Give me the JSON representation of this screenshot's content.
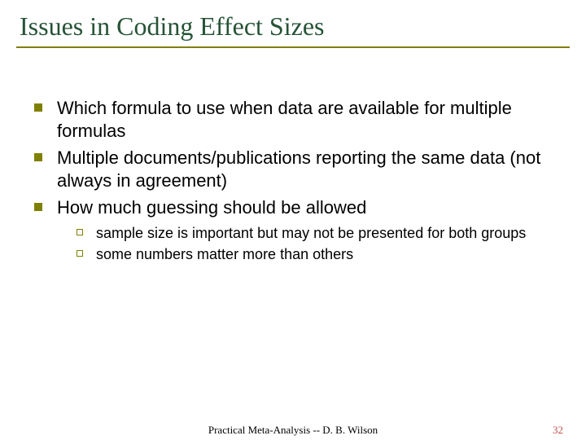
{
  "title": "Issues in Coding Effect Sizes",
  "colors": {
    "title_color": "#265336",
    "underline_color": "#808000",
    "level1_bullet_fill": "#808000",
    "level2_bullet_border": "#808000",
    "background": "#ffffff",
    "body_text": "#000000",
    "page_number_color": "#c0504d"
  },
  "typography": {
    "title_fontsize": 32,
    "title_fontfamily": "Times New Roman",
    "body_fontfamily": "Arial",
    "level1_fontsize": 22,
    "level2_fontsize": 18,
    "footer_fontsize": 13
  },
  "bullets": [
    {
      "text": "Which formula to use when data are available for multiple formulas"
    },
    {
      "text": "Multiple documents/publications reporting the same data (not always in agreement)"
    },
    {
      "text": "How much guessing should be allowed",
      "children": [
        {
          "text": "sample size is important but may not be presented for both groups"
        },
        {
          "text": "some numbers matter more than others"
        }
      ]
    }
  ],
  "footer": {
    "center": "Practical Meta-Analysis -- D. B. Wilson",
    "page": "32"
  }
}
